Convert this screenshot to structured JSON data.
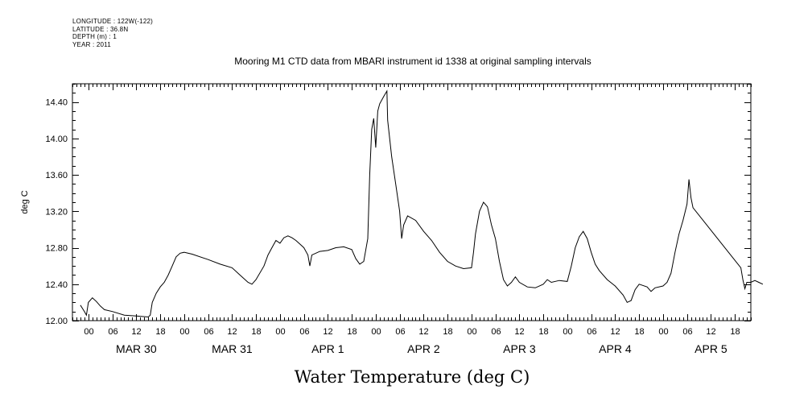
{
  "header_info": [
    "LONGITUDE : 122W(-122)",
    "LATITUDE : 36.8N",
    "DEPTH (m) : 1",
    "YEAR : 2011"
  ],
  "chart_data": {
    "type": "line",
    "title": "Mooring M1 CTD data from MBARI instrument id 1338 at original sampling intervals",
    "xlabel": "Water Temperature (deg C)",
    "ylabel": "deg C",
    "ylim": [
      12.0,
      14.6
    ],
    "yticks": [
      "12.00",
      "12.40",
      "12.80",
      "13.20",
      "13.60",
      "14.00",
      "14.40"
    ],
    "x_unit": "hours since 2011-03-30 00:00",
    "xlim": [
      -4,
      166
    ],
    "hour_tick_labels": [
      "00",
      "06",
      "12",
      "18"
    ],
    "day_labels": [
      "MAR 30",
      "MAR 31",
      "APR  1",
      "APR  2",
      "APR  3",
      "APR  4",
      "APR  5"
    ],
    "grid": false,
    "legend": "none",
    "series": [
      {
        "values": [
          [
            -2,
            12.17
          ],
          [
            -1,
            12.1
          ],
          [
            -0.5,
            12.06
          ],
          [
            0,
            12.2
          ],
          [
            1,
            12.25
          ],
          [
            2,
            12.21
          ],
          [
            3,
            12.16
          ],
          [
            4,
            12.12
          ],
          [
            6,
            12.1
          ],
          [
            9,
            12.06
          ],
          [
            12,
            12.05
          ],
          [
            15,
            12.04
          ],
          [
            15.5,
            12.06
          ],
          [
            16,
            12.2
          ],
          [
            17,
            12.3
          ],
          [
            18,
            12.37
          ],
          [
            19,
            12.42
          ],
          [
            20,
            12.5
          ],
          [
            21,
            12.6
          ],
          [
            22,
            12.7
          ],
          [
            23,
            12.74
          ],
          [
            24,
            12.75
          ],
          [
            26,
            12.73
          ],
          [
            30,
            12.67
          ],
          [
            33,
            12.62
          ],
          [
            36,
            12.58
          ],
          [
            38,
            12.5
          ],
          [
            40,
            12.42
          ],
          [
            41,
            12.4
          ],
          [
            42,
            12.45
          ],
          [
            44,
            12.6
          ],
          [
            45,
            12.72
          ],
          [
            46,
            12.8
          ],
          [
            47,
            12.88
          ],
          [
            48,
            12.85
          ],
          [
            49,
            12.91
          ],
          [
            50,
            12.93
          ],
          [
            51,
            12.91
          ],
          [
            52,
            12.88
          ],
          [
            53,
            12.84
          ],
          [
            54,
            12.8
          ],
          [
            55,
            12.72
          ],
          [
            55.5,
            12.6
          ],
          [
            56,
            12.72
          ],
          [
            58,
            12.76
          ],
          [
            60,
            12.77
          ],
          [
            62,
            12.8
          ],
          [
            64,
            12.81
          ],
          [
            66,
            12.78
          ],
          [
            67,
            12.68
          ],
          [
            68,
            12.62
          ],
          [
            69,
            12.65
          ],
          [
            70,
            12.9
          ],
          [
            70.5,
            13.6
          ],
          [
            71,
            14.1
          ],
          [
            71.5,
            14.22
          ],
          [
            72,
            13.9
          ],
          [
            72.5,
            14.3
          ],
          [
            73,
            14.38
          ],
          [
            74,
            14.46
          ],
          [
            74.8,
            14.52
          ],
          [
            75,
            14.2
          ],
          [
            76,
            13.8
          ],
          [
            77,
            13.5
          ],
          [
            78,
            13.2
          ],
          [
            78.5,
            12.9
          ],
          [
            79,
            13.05
          ],
          [
            80,
            13.15
          ],
          [
            82,
            13.1
          ],
          [
            84,
            12.98
          ],
          [
            86,
            12.88
          ],
          [
            88,
            12.75
          ],
          [
            90,
            12.65
          ],
          [
            92,
            12.6
          ],
          [
            94,
            12.57
          ],
          [
            96,
            12.58
          ],
          [
            96.5,
            12.75
          ],
          [
            97,
            12.95
          ],
          [
            98,
            13.2
          ],
          [
            99,
            13.3
          ],
          [
            100,
            13.25
          ],
          [
            101,
            13.05
          ],
          [
            102,
            12.9
          ],
          [
            103,
            12.65
          ],
          [
            104,
            12.45
          ],
          [
            105,
            12.38
          ],
          [
            106,
            12.42
          ],
          [
            107,
            12.48
          ],
          [
            108,
            12.42
          ],
          [
            110,
            12.37
          ],
          [
            112,
            12.36
          ],
          [
            114,
            12.4
          ],
          [
            115,
            12.45
          ],
          [
            116,
            12.42
          ],
          [
            118,
            12.44
          ],
          [
            120,
            12.43
          ],
          [
            121,
            12.6
          ],
          [
            122,
            12.8
          ],
          [
            123,
            12.92
          ],
          [
            124,
            12.98
          ],
          [
            125,
            12.9
          ],
          [
            126,
            12.75
          ],
          [
            127,
            12.62
          ],
          [
            128,
            12.55
          ],
          [
            130,
            12.45
          ],
          [
            132,
            12.38
          ],
          [
            134,
            12.28
          ],
          [
            135,
            12.2
          ],
          [
            136,
            12.22
          ],
          [
            137,
            12.34
          ],
          [
            138,
            12.4
          ],
          [
            140,
            12.37
          ],
          [
            141,
            12.32
          ],
          [
            142,
            12.36
          ],
          [
            144,
            12.38
          ],
          [
            145,
            12.42
          ],
          [
            146,
            12.52
          ],
          [
            147,
            12.75
          ],
          [
            148,
            12.95
          ],
          [
            149,
            13.1
          ],
          [
            150,
            13.28
          ],
          [
            150.5,
            13.55
          ],
          [
            151,
            13.35
          ],
          [
            151.5,
            13.24
          ],
          [
            163.5,
            12.58
          ],
          [
            164,
            12.45
          ],
          [
            164.5,
            12.35
          ],
          [
            165,
            12.42
          ],
          [
            166,
            12.42
          ],
          [
            167,
            12.44
          ],
          [
            168,
            12.42
          ],
          [
            169,
            12.4
          ]
        ]
      }
    ]
  }
}
